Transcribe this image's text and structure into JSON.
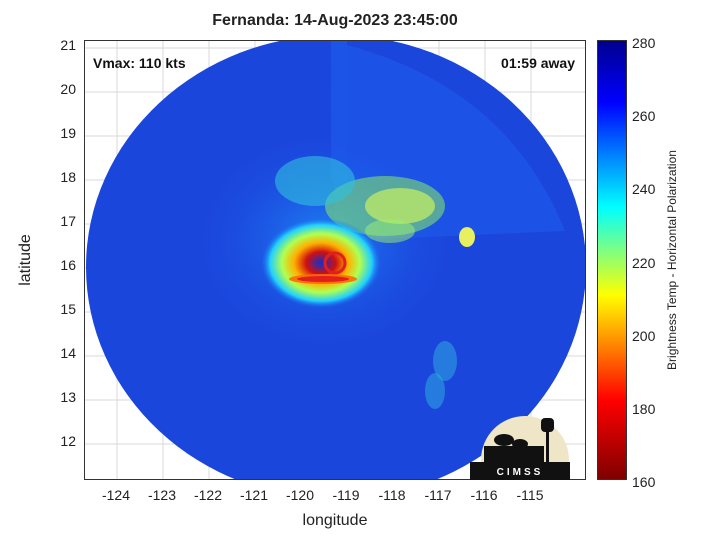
{
  "title": "Fernanda: 14-Aug-2023 23:45:00",
  "annotations": {
    "vmax": "Vmax: 110 kts",
    "time_away": "01:59 away"
  },
  "x_axis": {
    "label": "longitude",
    "ticks": [
      "-124",
      "-123",
      "-122",
      "-121",
      "-120",
      "-119",
      "-118",
      "-117",
      "-116",
      "-115"
    ]
  },
  "y_axis": {
    "label": "latitude",
    "ticks": [
      "21",
      "20",
      "19",
      "18",
      "17",
      "16",
      "15",
      "14",
      "13",
      "12"
    ]
  },
  "colorbar": {
    "label": "Brightness Temp - Horizontal Polarization",
    "ticks": [
      "280",
      "260",
      "240",
      "220",
      "200",
      "180",
      "160"
    ]
  },
  "logo_text": "CIMSS",
  "colors": {
    "background_disk": "#1a4fe6",
    "eye_core": "#cc1010",
    "outer_bands": "#14c8e6"
  }
}
